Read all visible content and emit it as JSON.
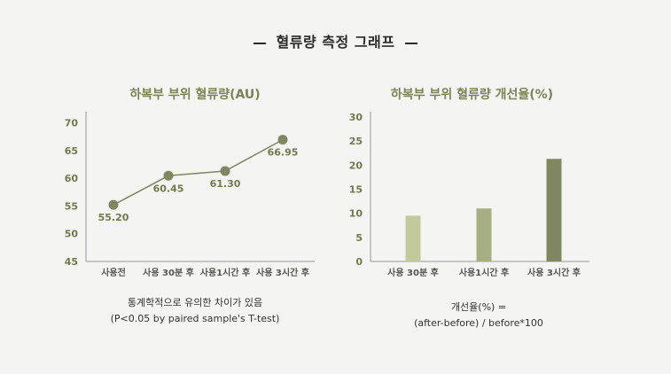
{
  "header": {
    "title": "혈류량 측정 그래프"
  },
  "chart_data": [
    {
      "type": "line",
      "title": "하복부 부위 혈류량(AU)",
      "categories": [
        "사용전",
        "사용 30분 후",
        "사용1시간 후",
        "사용 3시간 후"
      ],
      "series": [
        {
          "values": [
            55.2,
            60.45,
            61.3,
            66.95
          ]
        }
      ],
      "data_labels": [
        "55.20",
        "60.45",
        "61.30",
        "66.95"
      ],
      "yticks": [
        45,
        50,
        55,
        60,
        65,
        70
      ],
      "ylim": [
        45,
        72
      ],
      "color": "#7f8762",
      "grid": false,
      "note": {
        "line1": "통계학적으로 유의한 차이가 있음",
        "line2": "(P<0.05 by paired sample's T-test)"
      }
    },
    {
      "type": "bar",
      "title": "하복부 부위 혈류량 개선율(%)",
      "categories": [
        "사용 30분 후",
        "사용1시간 후",
        "사용 3시간 후"
      ],
      "values": [
        9.5,
        11.0,
        21.3
      ],
      "yticks": [
        0,
        5,
        10,
        15,
        20,
        25,
        30
      ],
      "ylim": [
        0,
        30
      ],
      "colors": [
        "#c3c99d",
        "#a6ae84",
        "#7f8762"
      ],
      "grid": false,
      "note": {
        "line1": "개선율(%) =",
        "line2": "(after-before) / before*100"
      }
    }
  ]
}
